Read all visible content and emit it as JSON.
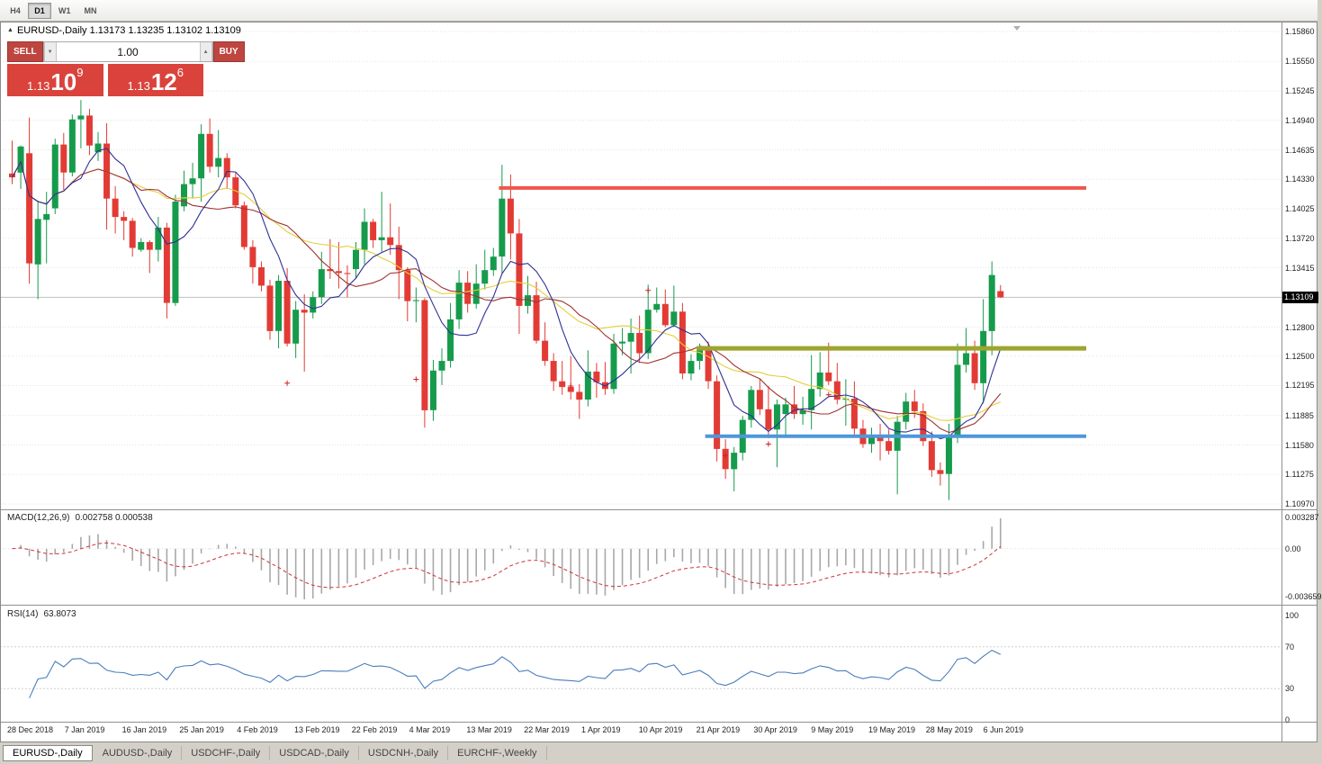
{
  "glyphs": {
    "header_arrow": "▲",
    "spinner_up": "▲",
    "spinner_down": "▼"
  },
  "toolbar": {
    "timeframes": [
      {
        "label": "H4",
        "active": false
      },
      {
        "label": "D1",
        "active": true
      },
      {
        "label": "W1",
        "active": false
      },
      {
        "label": "MN",
        "active": false
      }
    ]
  },
  "chart": {
    "title": "EURUSD-,Daily",
    "ohlc": "1.13173 1.13235 1.13102 1.13109"
  },
  "trade_panel": {
    "sell_label": "SELL",
    "buy_label": "BUY",
    "volume": "1.00",
    "sell_price": {
      "prefix": "1.13",
      "big": "10",
      "sup": "9"
    },
    "buy_price": {
      "prefix": "1.13",
      "big": "12",
      "sup": "6"
    }
  },
  "price_axis": {
    "ticks": [
      "1.15860",
      "1.15550",
      "1.15245",
      "1.14940",
      "1.14635",
      "1.14330",
      "1.14025",
      "1.13720",
      "1.13415",
      "1.12800",
      "1.12500",
      "1.12195",
      "1.11885",
      "1.11580",
      "1.11275",
      "1.10970"
    ],
    "current": "1.13109"
  },
  "macd": {
    "label": "MACD(12,26,9)",
    "values": "0.002758 0.000538",
    "axis_max": "0.003287",
    "axis_zero": "0.00",
    "axis_min": "-0.003659"
  },
  "rsi": {
    "label": "RSI(14)",
    "value": "63.8073",
    "axis_levels": [
      "100",
      "70",
      "30",
      "0"
    ]
  },
  "date_axis": [
    "28 Dec 2018",
    "7 Jan 2019",
    "16 Jan 2019",
    "25 Jan 2019",
    "4 Feb 2019",
    "13 Feb 2019",
    "22 Feb 2019",
    "4 Mar 2019",
    "13 Mar 2019",
    "22 Mar 2019",
    "1 Apr 2019",
    "10 Apr 2019",
    "21 Apr 2019",
    "30 Apr 2019",
    "9 May 2019",
    "19 May 2019",
    "28 May 2019",
    "6 Jun 2019"
  ],
  "tabs": [
    {
      "label": "EURUSD-,Daily",
      "active": true
    },
    {
      "label": "AUDUSD-,Daily",
      "active": false
    },
    {
      "label": "USDCHF-,Daily",
      "active": false
    },
    {
      "label": "USDCAD-,Daily",
      "active": false
    },
    {
      "label": "USDCNH-,Daily",
      "active": false
    },
    {
      "label": "EURCHF-,Weekly",
      "active": false
    }
  ],
  "chart_data": {
    "type": "candlestick",
    "title": "EURUSD-,Daily",
    "price_range": [
      1.1097,
      1.1586
    ],
    "colors": {
      "up": "#169b4c",
      "down": "#e23b35"
    },
    "candles": [
      [
        1.1439,
        1.1473,
        1.1428,
        1.1435
      ],
      [
        1.144,
        1.1468,
        1.1423,
        1.1467
      ],
      [
        1.146,
        1.1497,
        1.1325,
        1.1346
      ],
      [
        1.1345,
        1.1411,
        1.1309,
        1.1392
      ],
      [
        1.1391,
        1.142,
        1.1346,
        1.1397
      ],
      [
        1.1403,
        1.1475,
        1.1397,
        1.1469
      ],
      [
        1.1469,
        1.1481,
        1.1422,
        1.144
      ],
      [
        1.144,
        1.15,
        1.1436,
        1.1495
      ],
      [
        1.1495,
        1.1515,
        1.1465,
        1.1499
      ],
      [
        1.1499,
        1.1506,
        1.1458,
        1.1468
      ],
      [
        1.1461,
        1.1482,
        1.1452,
        1.147
      ],
      [
        1.147,
        1.1491,
        1.1381,
        1.1413
      ],
      [
        1.1413,
        1.1426,
        1.1377,
        1.1394
      ],
      [
        1.1394,
        1.14,
        1.137,
        1.139
      ],
      [
        1.139,
        1.1393,
        1.1353,
        1.1362
      ],
      [
        1.136,
        1.1372,
        1.1358,
        1.1368
      ],
      [
        1.1368,
        1.137,
        1.1336,
        1.136
      ],
      [
        1.136,
        1.1394,
        1.1348,
        1.1383
      ],
      [
        1.1383,
        1.1388,
        1.1289,
        1.1305
      ],
      [
        1.1305,
        1.1417,
        1.1302,
        1.141
      ],
      [
        1.1405,
        1.1442,
        1.14,
        1.1428
      ],
      [
        1.1428,
        1.145,
        1.1413,
        1.1434
      ],
      [
        1.1434,
        1.149,
        1.141,
        1.148
      ],
      [
        1.148,
        1.1496,
        1.144,
        1.1446
      ],
      [
        1.1446,
        1.1484,
        1.1435,
        1.1455
      ],
      [
        1.1455,
        1.146,
        1.1423,
        1.1435
      ],
      [
        1.1435,
        1.144,
        1.1403,
        1.1406
      ],
      [
        1.1406,
        1.141,
        1.136,
        1.1363
      ],
      [
        1.1363,
        1.137,
        1.1325,
        1.1342
      ],
      [
        1.1342,
        1.1348,
        1.1317,
        1.1323
      ],
      [
        1.1323,
        1.1329,
        1.1267,
        1.1276
      ],
      [
        1.1276,
        1.1334,
        1.1258,
        1.1328
      ],
      [
        1.1328,
        1.1341,
        1.126,
        1.1263
      ],
      [
        1.1263,
        1.1307,
        1.1248,
        1.1298
      ],
      [
        1.1298,
        1.1314,
        1.1234,
        1.1295
      ],
      [
        1.1295,
        1.1317,
        1.1289,
        1.1311
      ],
      [
        1.1311,
        1.1358,
        1.1304,
        1.134
      ],
      [
        1.134,
        1.1371,
        1.133,
        1.1338
      ],
      [
        1.1338,
        1.1368,
        1.132,
        1.1336
      ],
      [
        1.1336,
        1.1344,
        1.1311,
        1.1335
      ],
      [
        1.134,
        1.1368,
        1.1331,
        1.136
      ],
      [
        1.136,
        1.1403,
        1.1345,
        1.1389
      ],
      [
        1.1389,
        1.1392,
        1.1362,
        1.137
      ],
      [
        1.137,
        1.142,
        1.1358,
        1.1373
      ],
      [
        1.1373,
        1.1408,
        1.1355,
        1.1365
      ],
      [
        1.1365,
        1.1384,
        1.1309,
        1.1339
      ],
      [
        1.1339,
        1.1342,
        1.1286,
        1.1307
      ],
      [
        1.1307,
        1.1321,
        1.1285,
        1.1308
      ],
      [
        1.1308,
        1.131,
        1.1176,
        1.1194
      ],
      [
        1.1194,
        1.1246,
        1.1183,
        1.1235
      ],
      [
        1.1235,
        1.1258,
        1.122,
        1.1245
      ],
      [
        1.1245,
        1.1305,
        1.1238,
        1.1288
      ],
      [
        1.1288,
        1.1339,
        1.1278,
        1.1326
      ],
      [
        1.1326,
        1.1338,
        1.1295,
        1.1304
      ],
      [
        1.1304,
        1.1345,
        1.1299,
        1.1325
      ],
      [
        1.1325,
        1.136,
        1.1319,
        1.1339
      ],
      [
        1.1339,
        1.1362,
        1.1333,
        1.1353
      ],
      [
        1.1353,
        1.1448,
        1.1335,
        1.1413
      ],
      [
        1.1413,
        1.1438,
        1.135,
        1.1377
      ],
      [
        1.1377,
        1.1392,
        1.1273,
        1.1302
      ],
      [
        1.1302,
        1.1333,
        1.1294,
        1.1313
      ],
      [
        1.1313,
        1.1327,
        1.1263,
        1.1266
      ],
      [
        1.1266,
        1.1285,
        1.124,
        1.1245
      ],
      [
        1.1245,
        1.1253,
        1.1214,
        1.1224
      ],
      [
        1.1224,
        1.1245,
        1.121,
        1.1218
      ],
      [
        1.1218,
        1.125,
        1.1205,
        1.1213
      ],
      [
        1.1213,
        1.1221,
        1.1185,
        1.1205
      ],
      [
        1.1205,
        1.1256,
        1.1198,
        1.1234
      ],
      [
        1.1234,
        1.1243,
        1.1207,
        1.1223
      ],
      [
        1.1223,
        1.1244,
        1.121,
        1.1216
      ],
      [
        1.1216,
        1.1273,
        1.1211,
        1.1263
      ],
      [
        1.1263,
        1.1279,
        1.1251,
        1.1265
      ],
      [
        1.1265,
        1.1289,
        1.1232,
        1.1274
      ],
      [
        1.1274,
        1.1292,
        1.1243,
        1.1253
      ],
      [
        1.1253,
        1.1324,
        1.1247,
        1.1298
      ],
      [
        1.1298,
        1.1321,
        1.1295,
        1.1304
      ],
      [
        1.1304,
        1.1319,
        1.128,
        1.1282
      ],
      [
        1.1282,
        1.1323,
        1.128,
        1.1296
      ],
      [
        1.1296,
        1.1305,
        1.1226,
        1.1232
      ],
      [
        1.1232,
        1.1252,
        1.1225,
        1.1245
      ],
      [
        1.1245,
        1.1263,
        1.1236,
        1.1258
      ],
      [
        1.1258,
        1.1265,
        1.1216,
        1.1224
      ],
      [
        1.1224,
        1.123,
        1.1141,
        1.1154
      ],
      [
        1.1154,
        1.1164,
        1.1123,
        1.1133
      ],
      [
        1.1133,
        1.1156,
        1.111,
        1.115
      ],
      [
        1.115,
        1.1188,
        1.1142,
        1.1184
      ],
      [
        1.1184,
        1.1219,
        1.1176,
        1.1215
      ],
      [
        1.1215,
        1.1226,
        1.1189,
        1.1195
      ],
      [
        1.1195,
        1.1219,
        1.1165,
        1.1174
      ],
      [
        1.1174,
        1.1205,
        1.1135,
        1.12
      ],
      [
        1.119,
        1.1207,
        1.1167,
        1.12
      ],
      [
        1.12,
        1.1219,
        1.1185,
        1.119
      ],
      [
        1.119,
        1.1208,
        1.1179,
        1.1194
      ],
      [
        1.1194,
        1.1251,
        1.1174,
        1.1216
      ],
      [
        1.1216,
        1.1254,
        1.1208,
        1.1233
      ],
      [
        1.1233,
        1.1264,
        1.122,
        1.1224
      ],
      [
        1.1224,
        1.1243,
        1.12,
        1.1205
      ],
      [
        1.1205,
        1.1226,
        1.1178,
        1.1206
      ],
      [
        1.1206,
        1.1224,
        1.1166,
        1.1175
      ],
      [
        1.1175,
        1.1184,
        1.1155,
        1.1159
      ],
      [
        1.1159,
        1.1176,
        1.115,
        1.1167
      ],
      [
        1.1167,
        1.118,
        1.1142,
        1.1162
      ],
      [
        1.1162,
        1.1174,
        1.1148,
        1.1152
      ],
      [
        1.1152,
        1.1188,
        1.1107,
        1.1182
      ],
      [
        1.1182,
        1.1212,
        1.1174,
        1.1203
      ],
      [
        1.1203,
        1.1215,
        1.1186,
        1.1193
      ],
      [
        1.1193,
        1.1201,
        1.1157,
        1.1162
      ],
      [
        1.1162,
        1.1172,
        1.1125,
        1.1132
      ],
      [
        1.1132,
        1.114,
        1.1116,
        1.1128
      ],
      [
        1.1128,
        1.118,
        1.1101,
        1.1168
      ],
      [
        1.1168,
        1.1263,
        1.116,
        1.1241
      ],
      [
        1.1241,
        1.1279,
        1.1233,
        1.1253
      ],
      [
        1.1253,
        1.1266,
        1.1215,
        1.1222
      ],
      [
        1.1222,
        1.1309,
        1.1201,
        1.1276
      ],
      [
        1.1276,
        1.1348,
        1.1251,
        1.1334
      ],
      [
        1.13173,
        1.13235,
        1.13102,
        1.13109
      ]
    ],
    "moving_averages": [
      {
        "period": 21,
        "color": "#e3cf3a"
      },
      {
        "period": 14,
        "color": "#a03333"
      },
      {
        "period": 7,
        "color": "#2e3192"
      }
    ],
    "hlines": [
      {
        "price": 1.1424,
        "from_index": 57,
        "color": "#ef564c",
        "width": 4
      },
      {
        "price": 1.1258,
        "from_index": 80,
        "color": "#9da52f",
        "width": 5
      },
      {
        "price": 1.1167,
        "from_index": 81,
        "color": "#4e97d9",
        "width": 4
      }
    ],
    "markers": [
      {
        "index": 32,
        "price": 1.1222
      },
      {
        "index": 47,
        "price": 1.1226
      },
      {
        "index": 65,
        "price": 1.1219
      },
      {
        "index": 74,
        "price": 1.1318
      },
      {
        "index": 83,
        "price": 1.1147
      },
      {
        "index": 88,
        "price": 1.1159
      },
      {
        "index": 95,
        "price": 1.121
      }
    ],
    "macd_panel": {
      "params": [
        12,
        26,
        9
      ],
      "hist_color": "#a8a8a8",
      "signal_color": "#cc3333",
      "last_main": 0.002758,
      "last_signal": 0.000538,
      "axis": [
        0.003287,
        0,
        -0.003659
      ]
    },
    "rsi_panel": {
      "period": 14,
      "color": "#4a7ebb",
      "last": 63.8073,
      "levels": [
        70,
        30
      ],
      "range": [
        0,
        100
      ]
    }
  }
}
